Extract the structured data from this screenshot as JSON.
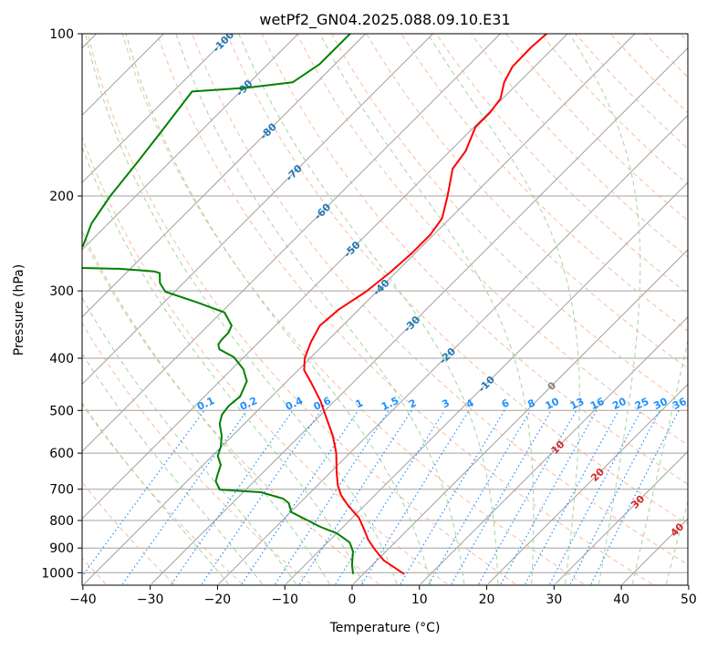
{
  "chart_data": {
    "type": "line",
    "subtype": "skew-t log-p",
    "title": "wetPf2_GN04.2025.088.09.10.E31",
    "xlabel": "Temperature (°C)",
    "ylabel": "Pressure (hPa)",
    "xlim": [
      -40,
      50
    ],
    "ylim": [
      1050,
      100
    ],
    "x_ticks": [
      "−40",
      "−30",
      "−20",
      "−10",
      "0",
      "10",
      "20",
      "30",
      "40",
      "50"
    ],
    "x_tick_values": [
      -40,
      -30,
      -20,
      -10,
      0,
      10,
      20,
      30,
      40,
      50
    ],
    "y_ticks": [
      "100",
      "200",
      "300",
      "400",
      "500",
      "600",
      "700",
      "800",
      "900",
      "1000"
    ],
    "y_tick_values": [
      100,
      200,
      300,
      400,
      500,
      600,
      700,
      800,
      900,
      1000
    ],
    "grid": true,
    "isotherm_labels": [
      {
        "t": -100,
        "label": "-100",
        "p": 105
      },
      {
        "t": -90,
        "label": "-90",
        "p": 128
      },
      {
        "t": -80,
        "label": "-80",
        "p": 154
      },
      {
        "t": -70,
        "label": "-70",
        "p": 184
      },
      {
        "t": -60,
        "label": "-60",
        "p": 217
      },
      {
        "t": -50,
        "label": "-50",
        "p": 255
      },
      {
        "t": -40,
        "label": "-40",
        "p": 300
      },
      {
        "t": -30,
        "label": "-30",
        "p": 351
      },
      {
        "t": -20,
        "label": "-20",
        "p": 402
      },
      {
        "t": -10,
        "label": "-10",
        "p": 457
      },
      {
        "t": 0,
        "label": "0",
        "p": 522
      },
      {
        "t": 10,
        "label": "10",
        "p": 594
      },
      {
        "t": 20,
        "label": "20",
        "p": 668
      },
      {
        "t": 30,
        "label": "30",
        "p": 750
      },
      {
        "t": 40,
        "label": "40",
        "p": 845
      }
    ],
    "mixing_ratio_labels": [
      "0.1",
      "0.2",
      "0.4",
      "0.6",
      "1",
      "1.5",
      "2",
      "3",
      "4",
      "6",
      "8",
      "10",
      "13",
      "16",
      "20",
      "25",
      "30",
      "36"
    ],
    "mixing_ratio_values": [
      0.1,
      0.2,
      0.4,
      0.6,
      1,
      1.5,
      2,
      3,
      4,
      6,
      8,
      10,
      13,
      16,
      20,
      25,
      30,
      36
    ],
    "series": [
      {
        "name": "Temperature",
        "color": "#ff0000",
        "points": [
          [
            1006,
            6.1
          ],
          [
            950,
            1.1
          ],
          [
            906,
            -1.9
          ],
          [
            868,
            -4.4
          ],
          [
            828,
            -6.7
          ],
          [
            791,
            -9.0
          ],
          [
            772,
            -10.6
          ],
          [
            746,
            -12.8
          ],
          [
            717,
            -15.1
          ],
          [
            688,
            -17.0
          ],
          [
            651,
            -19.1
          ],
          [
            600,
            -22.0
          ],
          [
            557,
            -25.1
          ],
          [
            515,
            -28.8
          ],
          [
            480,
            -32.1
          ],
          [
            444,
            -36.2
          ],
          [
            421,
            -39.1
          ],
          [
            400,
            -40.8
          ],
          [
            373,
            -42.3
          ],
          [
            348,
            -43.4
          ],
          [
            325,
            -43.0
          ],
          [
            301,
            -41.6
          ],
          [
            278,
            -40.9
          ],
          [
            256,
            -40.5
          ],
          [
            236,
            -40.5
          ],
          [
            220,
            -41.2
          ],
          [
            200,
            -43.7
          ],
          [
            178,
            -47.0
          ],
          [
            165,
            -47.7
          ],
          [
            149,
            -49.8
          ],
          [
            140,
            -49.8
          ],
          [
            132,
            -50.3
          ],
          [
            123,
            -52.2
          ],
          [
            115,
            -53.3
          ],
          [
            106,
            -53.4
          ],
          [
            100,
            -53.1
          ]
        ]
      },
      {
        "name": "Dewpoint",
        "color": "#008000",
        "points": [
          [
            1006,
            -1.5
          ],
          [
            968,
            -3.0
          ],
          [
            913,
            -4.9
          ],
          [
            879,
            -6.7
          ],
          [
            861,
            -8.4
          ],
          [
            845,
            -10.0
          ],
          [
            822,
            -13.4
          ],
          [
            797,
            -16.6
          ],
          [
            772,
            -19.9
          ],
          [
            743,
            -21.6
          ],
          [
            729,
            -23.1
          ],
          [
            709,
            -27.4
          ],
          [
            701,
            -33.9
          ],
          [
            677,
            -35.7
          ],
          [
            656,
            -36.5
          ],
          [
            631,
            -37.4
          ],
          [
            607,
            -39.2
          ],
          [
            584,
            -40.1
          ],
          [
            557,
            -41.6
          ],
          [
            529,
            -43.7
          ],
          [
            509,
            -44.7
          ],
          [
            490,
            -45.0
          ],
          [
            471,
            -44.7
          ],
          [
            441,
            -46.0
          ],
          [
            419,
            -48.3
          ],
          [
            398,
            -51.5
          ],
          [
            385,
            -54.8
          ],
          [
            377,
            -55.7
          ],
          [
            369,
            -55.9
          ],
          [
            359,
            -55.9
          ],
          [
            348,
            -56.5
          ],
          [
            329,
            -59.5
          ],
          [
            315,
            -65.1
          ],
          [
            301,
            -71.4
          ],
          [
            290,
            -73.5
          ],
          [
            278,
            -75.0
          ],
          [
            276,
            -76.1
          ],
          [
            273,
            -81.6
          ],
          [
            272,
            -87.2
          ],
          [
            260,
            -95.6
          ],
          [
            248,
            -90.4
          ],
          [
            225,
            -92.5
          ],
          [
            200,
            -93.8
          ],
          [
            173,
            -94.8
          ],
          [
            152,
            -95.8
          ],
          [
            128,
            -97.2
          ],
          [
            126,
            -89.6
          ],
          [
            123,
            -83.6
          ],
          [
            114,
            -82.3
          ],
          [
            100,
            -82.3
          ]
        ]
      }
    ]
  },
  "colors": {
    "isotherm": "#a0a0a0",
    "dry_adiabat": "#f4a582",
    "moist_adiabat": "#a6d3a0",
    "mixing_ratio": "#1e90ff",
    "label_cold": "#1f77b4",
    "label_zero": "#808080",
    "label_warm": "#d62728"
  }
}
